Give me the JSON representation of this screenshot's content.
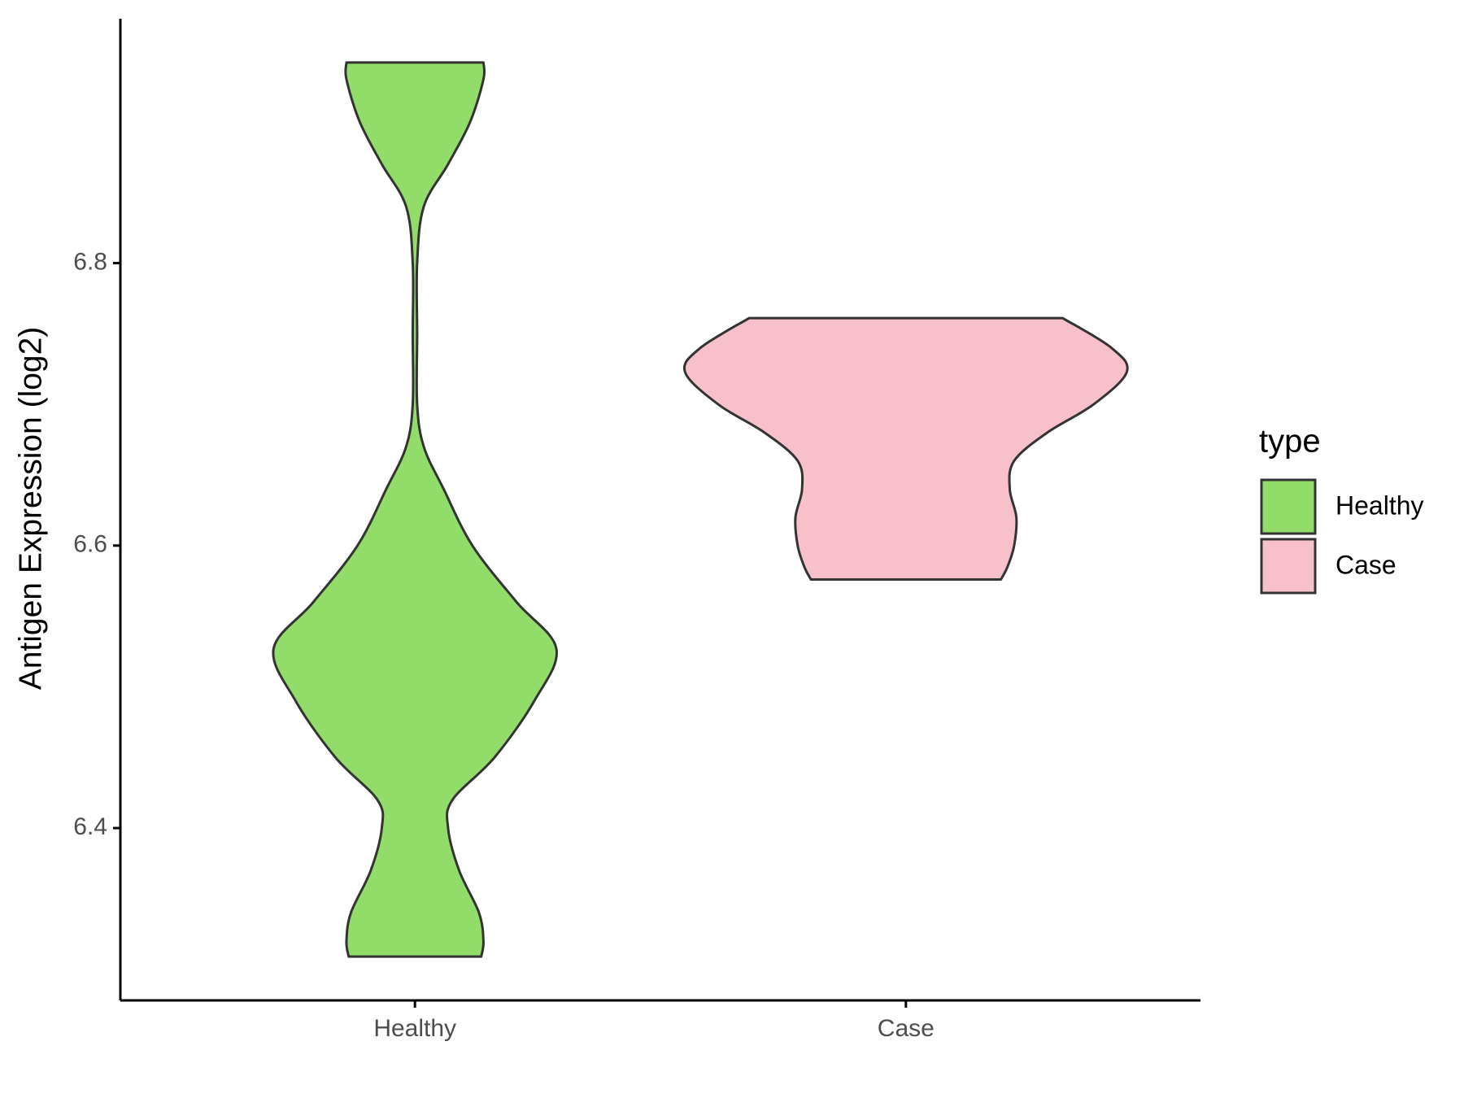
{
  "chart_data": {
    "type": "violin",
    "y_label": "Antigen Expression (log2)",
    "categories": [
      "Healthy",
      "Case"
    ],
    "legend_title": "type",
    "legend_position": "right",
    "ylim": [
      6.278,
      6.973
    ],
    "yticks": [
      6.4,
      6.6,
      6.8
    ],
    "series": [
      {
        "name": "Healthy",
        "color": "#92dc6a",
        "y": [
          6.942,
          6.93,
          6.9,
          6.87,
          6.84,
          6.8,
          6.75,
          6.7,
          6.67,
          6.64,
          6.6,
          6.56,
          6.527,
          6.49,
          6.45,
          6.42,
          6.4,
          6.37,
          6.34,
          6.32,
          6.309
        ],
        "density": [
          0.31,
          0.31,
          0.25,
          0.15,
          0.04,
          0.01,
          0.01,
          0.01,
          0.04,
          0.13,
          0.26,
          0.46,
          0.64,
          0.54,
          0.36,
          0.17,
          0.15,
          0.2,
          0.29,
          0.31,
          0.3
        ]
      },
      {
        "name": "Case",
        "color": "#f7c0cb",
        "y": [
          6.761,
          6.74,
          6.723,
          6.7,
          6.68,
          6.66,
          6.64,
          6.62,
          6.6,
          6.585,
          6.576
        ],
        "density": [
          0.71,
          0.93,
          1,
          0.85,
          0.64,
          0.49,
          0.47,
          0.5,
          0.49,
          0.46,
          0.43
        ]
      }
    ]
  }
}
